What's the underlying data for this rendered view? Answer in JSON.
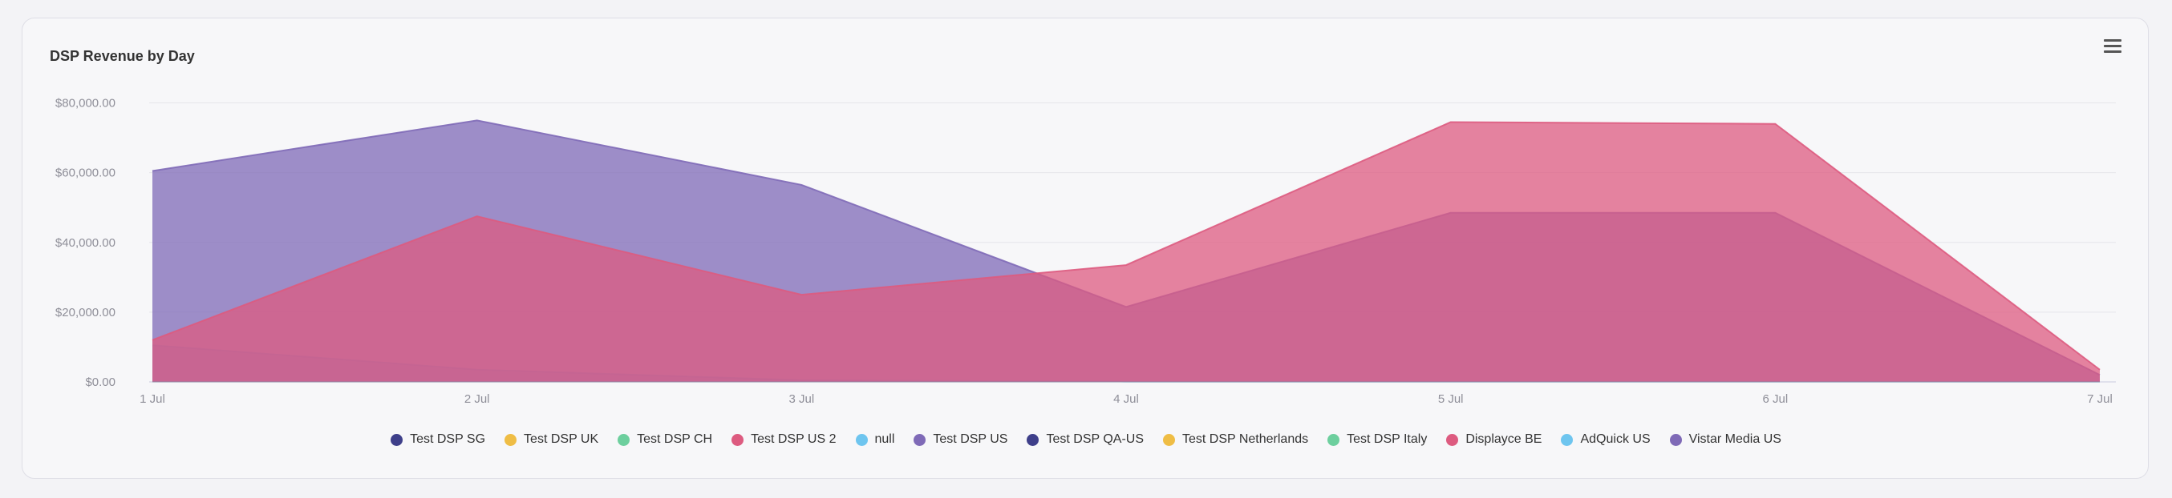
{
  "card": {
    "title": "DSP Revenue by Day"
  },
  "menu": {
    "icon": "hamburger-menu-icon"
  },
  "chart_data": {
    "type": "area",
    "title": "DSP Revenue by Day",
    "categories": [
      "1 Jul",
      "2 Jul",
      "3 Jul",
      "4 Jul",
      "5 Jul",
      "6 Jul",
      "7 Jul"
    ],
    "ylim": [
      0,
      90000
    ],
    "yticks": [
      0,
      20000,
      40000,
      60000,
      80000
    ],
    "ytick_labels": [
      "$0.00",
      "$20,000.00",
      "$40,000.00",
      "$60,000.00",
      "$80,000.00"
    ],
    "grid": true,
    "legend_position": "bottom",
    "series": [
      {
        "name": "Test DSP SG",
        "color": "#3e3f8a",
        "values": [
          0,
          0,
          0,
          0,
          0,
          0,
          0
        ]
      },
      {
        "name": "Test DSP UK",
        "color": "#efbd45",
        "values": [
          0,
          0,
          0,
          0,
          0,
          0,
          0
        ]
      },
      {
        "name": "Test DSP CH",
        "color": "#6dcf9e",
        "values": [
          0,
          0,
          0,
          0,
          0,
          0,
          0
        ]
      },
      {
        "name": "Test DSP US 2",
        "color": "#dd5b80",
        "values": [
          12000,
          47500,
          25000,
          33500,
          74500,
          74000,
          3500
        ]
      },
      {
        "name": "null",
        "color": "#6ec5ef",
        "values": [
          10500,
          3500,
          500,
          100,
          100,
          100,
          100
        ]
      },
      {
        "name": "Test DSP US",
        "color": "#7f6ab7",
        "values": [
          60500,
          75000,
          56500,
          21500,
          48500,
          48500,
          2000
        ]
      },
      {
        "name": "Test DSP QA-US",
        "color": "#3e3f8a",
        "values": [
          0,
          0,
          0,
          0,
          0,
          0,
          0
        ]
      },
      {
        "name": "Test DSP Netherlands",
        "color": "#efbd45",
        "values": [
          0,
          0,
          0,
          0,
          0,
          0,
          0
        ]
      },
      {
        "name": "Test DSP Italy",
        "color": "#6dcf9e",
        "values": [
          0,
          0,
          0,
          0,
          0,
          0,
          0
        ]
      },
      {
        "name": "Displayce BE",
        "color": "#dd5b80",
        "values": [
          0,
          0,
          0,
          0,
          0,
          0,
          0
        ]
      },
      {
        "name": "AdQuick US",
        "color": "#6ec5ef",
        "values": [
          0,
          0,
          0,
          0,
          0,
          0,
          0
        ]
      },
      {
        "name": "Vistar Media US",
        "color": "#7f6ab7",
        "values": [
          0,
          0,
          0,
          0,
          0,
          0,
          0
        ]
      }
    ]
  }
}
